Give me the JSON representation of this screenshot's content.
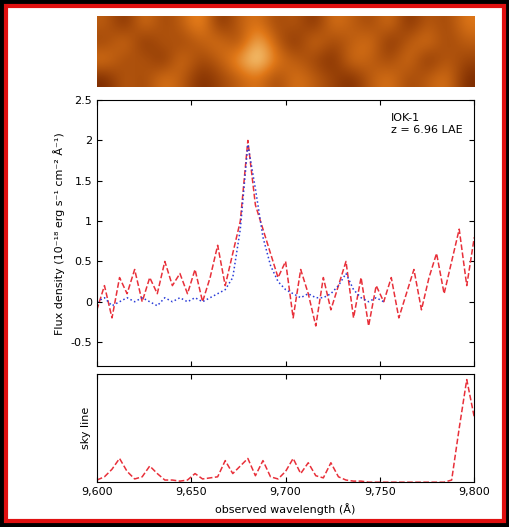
{
  "chart_data": [
    {
      "type": "heatmap",
      "tick_labels": false,
      "cells": [
        [
          0.5,
          0.3,
          0.6,
          0.4,
          0.5,
          0.7,
          0.3,
          0.5,
          0.6,
          0.4,
          0.5,
          0.3,
          0.6,
          0.5,
          0.4,
          0.6,
          0.3,
          0.5,
          0.4,
          0.6
        ],
        [
          0.4,
          0.6,
          0.3,
          0.5,
          0.4,
          0.5,
          0.6,
          0.4,
          0.8,
          0.5,
          0.3,
          0.6,
          0.4,
          0.5,
          0.6,
          0.3,
          0.5,
          0.6,
          0.4,
          0.5
        ],
        [
          0.6,
          0.4,
          0.5,
          0.3,
          0.6,
          0.4,
          0.5,
          0.7,
          0.9,
          0.6,
          0.5,
          0.4,
          0.3,
          0.6,
          0.5,
          0.4,
          0.6,
          0.3,
          0.5,
          0.4
        ],
        [
          0.3,
          0.5,
          0.4,
          0.6,
          0.5,
          0.3,
          0.4,
          0.5,
          0.6,
          0.4,
          0.6,
          0.5,
          0.4,
          0.3,
          0.5,
          0.6,
          0.4,
          0.5,
          0.6,
          0.3
        ]
      ]
    },
    {
      "type": "line",
      "y_label": "Flux density (10⁻¹⁸ erg s⁻¹ cm⁻² Å⁻¹)",
      "annotation": "IOK-1\nz = 6.96 LAE",
      "tick_labels": "y",
      "grid": false,
      "xlim": [
        9600,
        9800
      ],
      "xticks": [
        9600,
        9650,
        9700,
        9750,
        9800
      ],
      "ylim": [
        -0.8,
        2.5
      ],
      "yticks": [
        -0.5,
        0,
        0.5,
        1,
        1.5,
        2,
        2.5
      ],
      "x": [
        9600,
        9604,
        9608,
        9612,
        9616,
        9620,
        9624,
        9628,
        9632,
        9636,
        9640,
        9644,
        9648,
        9652,
        9656,
        9660,
        9664,
        9668,
        9672,
        9676,
        9680,
        9684,
        9688,
        9692,
        9696,
        9700,
        9704,
        9708,
        9712,
        9716,
        9720,
        9724,
        9728,
        9732,
        9736,
        9740,
        9744,
        9748,
        9752,
        9756,
        9760,
        9764,
        9768,
        9772,
        9776,
        9780,
        9784,
        9788,
        9792,
        9796,
        9800
      ],
      "series": [
        {
          "color": "#e8303a",
          "line_style": "dashed",
          "values": [
            -0.1,
            0.2,
            -0.2,
            0.3,
            0.1,
            0.4,
            0.0,
            0.3,
            0.1,
            0.5,
            0.2,
            0.35,
            0.1,
            0.4,
            0.0,
            0.3,
            0.7,
            0.2,
            0.6,
            1.0,
            2.0,
            1.2,
            0.9,
            0.6,
            0.3,
            0.5,
            -0.2,
            0.4,
            0.1,
            -0.3,
            0.3,
            -0.1,
            0.2,
            0.5,
            -0.2,
            0.3,
            -0.3,
            0.2,
            0.0,
            0.3,
            -0.2,
            0.1,
            0.4,
            -0.1,
            0.3,
            0.6,
            0.1,
            0.5,
            0.9,
            0.2,
            0.8
          ]
        },
        {
          "color": "#2a3cd8",
          "line_style": "dotted",
          "values": [
            0.0,
            0.05,
            -0.05,
            0.0,
            0.05,
            0.0,
            0.05,
            0.0,
            -0.05,
            0.05,
            0.0,
            0.05,
            0.0,
            0.05,
            0.0,
            0.05,
            0.1,
            0.15,
            0.3,
            0.9,
            1.95,
            1.4,
            0.8,
            0.45,
            0.25,
            0.15,
            0.1,
            0.05,
            0.1,
            0.05,
            0.05,
            0.1,
            0.2,
            0.35,
            0.15,
            0.05,
            0.0,
            0.05,
            0.0,
            null,
            null,
            null,
            null,
            null,
            null,
            null,
            null,
            null,
            null,
            null,
            null
          ]
        }
      ]
    },
    {
      "type": "line",
      "y_label": "sky line",
      "x_label": "observed wavelength (Å)",
      "tick_labels": "x",
      "grid": false,
      "xlim": [
        9600,
        9800
      ],
      "xticks": [
        {
          "value": 9600,
          "label": "9,600"
        },
        {
          "value": 9650,
          "label": "9,650"
        },
        {
          "value": 9700,
          "label": "9,700"
        },
        {
          "value": 9750,
          "label": "9,750"
        },
        {
          "value": 9800,
          "label": "9,800"
        }
      ],
      "ylim": [
        0,
        1
      ],
      "x": [
        9600,
        9604,
        9608,
        9612,
        9616,
        9620,
        9624,
        9628,
        9632,
        9636,
        9640,
        9644,
        9648,
        9652,
        9656,
        9660,
        9664,
        9668,
        9672,
        9676,
        9680,
        9684,
        9688,
        9692,
        9696,
        9700,
        9704,
        9708,
        9712,
        9716,
        9720,
        9724,
        9728,
        9732,
        9736,
        9740,
        9744,
        9748,
        9752,
        9756,
        9760,
        9764,
        9768,
        9772,
        9776,
        9780,
        9784,
        9788,
        9792,
        9796,
        9800
      ],
      "series": [
        {
          "color": "#e8303a",
          "line_style": "dashed",
          "values": [
            0.02,
            0.05,
            0.12,
            0.22,
            0.1,
            0.03,
            0.05,
            0.15,
            0.08,
            0.02,
            0.02,
            0.01,
            0.02,
            0.08,
            0.03,
            0.04,
            0.05,
            0.2,
            0.08,
            0.15,
            0.22,
            0.06,
            0.2,
            0.05,
            0.03,
            0.1,
            0.22,
            0.08,
            0.18,
            0.06,
            0.04,
            0.18,
            0.05,
            0.02,
            0.01,
            0.01,
            0.0,
            0.0,
            0.0,
            0.0,
            0.0,
            0.0,
            0.0,
            0.0,
            0.0,
            0.0,
            0.0,
            0.02,
            0.5,
            0.95,
            0.6
          ]
        }
      ]
    }
  ]
}
